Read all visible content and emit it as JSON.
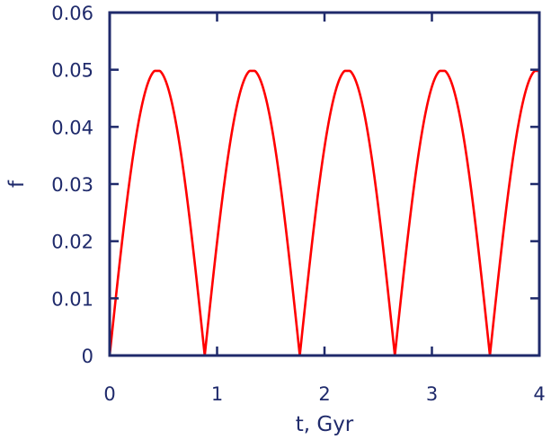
{
  "chart_data": {
    "type": "line",
    "title": "",
    "xlabel": "t, Gyr",
    "ylabel": "f",
    "xlim": [
      0,
      4
    ],
    "ylim": [
      0,
      0.06
    ],
    "x_ticks": [
      0,
      1,
      2,
      3,
      4
    ],
    "y_ticks": [
      0,
      0.01,
      0.02,
      0.03,
      0.04,
      0.05,
      0.06
    ],
    "x_tick_labels": [
      "0",
      "1",
      "2",
      "3",
      "4"
    ],
    "y_tick_labels": [
      "0",
      "0.01",
      "0.02",
      "0.03",
      "0.04",
      "0.05",
      "0.06"
    ],
    "grid": false,
    "legend": "none",
    "series": [
      {
        "color": "#ff0000",
        "function": "periodic arches: 0.05*|sin(pi*t/0.885)| clipped to 0.0498 near the peaks",
        "period": 0.885,
        "amplitude": 0.05,
        "peak_cap": 0.0498,
        "zeros_t": [
          0,
          0.885,
          1.77,
          2.655,
          3.54
        ],
        "peaks_t": [
          0.4425,
          1.3275,
          2.2125,
          3.0975,
          3.9825
        ]
      }
    ]
  },
  "colors": {
    "axis": "#1f2a6b",
    "curve": "#ff0000",
    "background": "#ffffff"
  }
}
